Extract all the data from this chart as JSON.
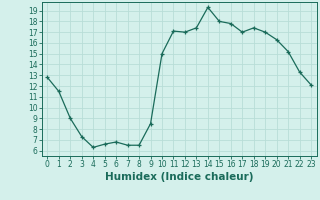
{
  "x": [
    0,
    1,
    2,
    3,
    4,
    5,
    6,
    7,
    8,
    9,
    10,
    11,
    12,
    13,
    14,
    15,
    16,
    17,
    18,
    19,
    20,
    21,
    22,
    23
  ],
  "y": [
    12.8,
    11.5,
    9.0,
    7.3,
    6.3,
    6.6,
    6.8,
    6.5,
    6.5,
    8.5,
    15.0,
    17.1,
    17.0,
    17.4,
    19.3,
    18.0,
    17.8,
    17.0,
    17.4,
    17.0,
    16.3,
    15.2,
    13.3,
    12.1
  ],
  "line_color": "#1a6b5a",
  "marker": "+",
  "bg_color": "#d4f0eb",
  "grid_color": "#b8ddd7",
  "xlabel": "Humidex (Indice chaleur)",
  "xlim": [
    -0.5,
    23.5
  ],
  "ylim": [
    5.5,
    19.8
  ],
  "yticks": [
    6,
    7,
    8,
    9,
    10,
    11,
    12,
    13,
    14,
    15,
    16,
    17,
    18,
    19
  ],
  "xticks": [
    0,
    1,
    2,
    3,
    4,
    5,
    6,
    7,
    8,
    9,
    10,
    11,
    12,
    13,
    14,
    15,
    16,
    17,
    18,
    19,
    20,
    21,
    22,
    23
  ],
  "tick_fontsize": 5.5,
  "label_fontsize": 7.5
}
